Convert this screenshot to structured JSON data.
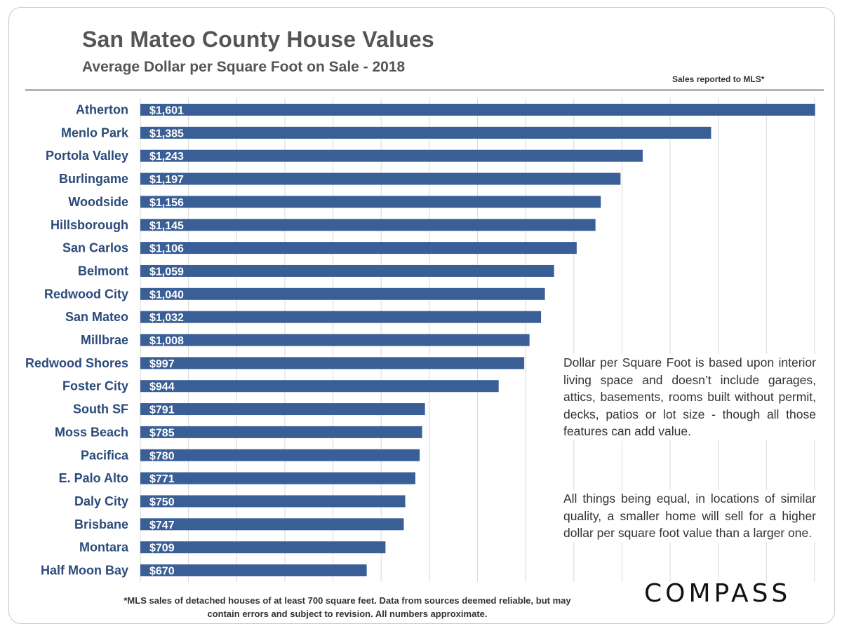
{
  "header": {
    "title": "San Mateo County House Values",
    "subtitle": "Average Dollar per Square Foot on Sale - 2018",
    "source_note": "Sales reported  to MLS*"
  },
  "notes": {
    "note1": "Dollar per Square Foot is based upon interior living space and doesn’t include garages, attics, basements, rooms built without permit, decks, patios or lot size - though all those features can add value.",
    "note2": "All things being equal, in locations of similar quality, a smaller home will sell for a higher dollar per square foot value than a larger one."
  },
  "footnote": {
    "line1": "*MLS sales of detached houses of at least 700 square feet. Data from sources deemed reliable, but may",
    "line2": "contain errors and subject to revision. All numbers approximate."
  },
  "logo": {
    "text": "COMPASS"
  },
  "colors": {
    "bar": "#3a5f96",
    "label": "#2b4a7a",
    "grid": "#d9d9d9"
  },
  "chart_data": {
    "type": "bar",
    "orientation": "horizontal",
    "title": "San Mateo County House Values",
    "subtitle": "Average Dollar per Square Foot on Sale - 2018",
    "categories": [
      "Atherton",
      "Menlo Park",
      "Portola Valley",
      "Burlingame",
      "Woodside",
      "Hillsborough",
      "San Carlos",
      "Belmont",
      "Redwood City",
      "San Mateo",
      "Millbrae",
      "Redwood Shores",
      "Foster City",
      "South SF",
      "Moss Beach",
      "Pacifica",
      "E. Palo Alto",
      "Daly City",
      "Brisbane",
      "Montara",
      "Half Moon Bay"
    ],
    "values": [
      1601,
      1385,
      1243,
      1197,
      1156,
      1145,
      1106,
      1059,
      1040,
      1032,
      1008,
      997,
      944,
      791,
      785,
      780,
      771,
      750,
      747,
      709,
      670
    ],
    "value_labels": [
      "$1,601",
      "$1,385",
      "$1,243",
      "$1,197",
      "$1,156",
      "$1,145",
      "$1,106",
      "$1,059",
      "$1,040",
      "$1,032",
      "$1,008",
      "$997",
      "$944",
      "$791",
      "$785",
      "$780",
      "$771",
      "$750",
      "$747",
      "$709",
      "$670"
    ],
    "xlim": [
      200,
      1600
    ],
    "grid": true,
    "legend": "none"
  }
}
